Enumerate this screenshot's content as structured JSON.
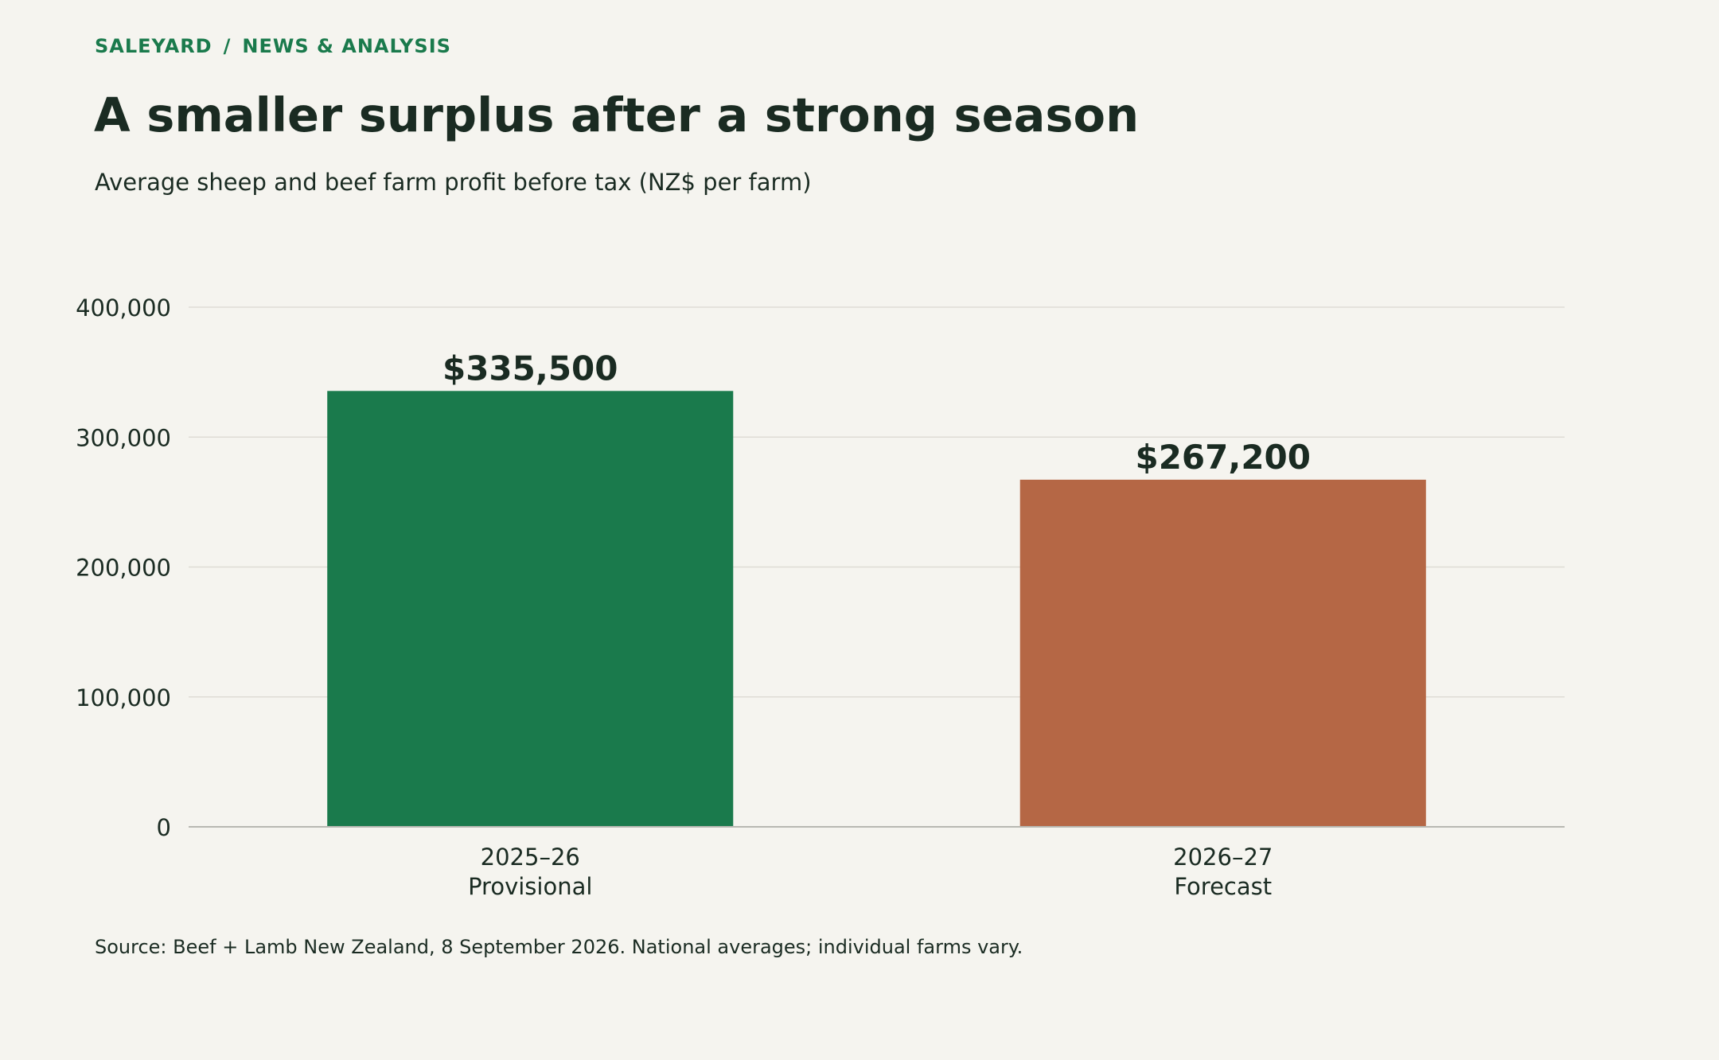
{
  "header": {
    "kicker_section": "SALEYARD",
    "kicker_separator": "/",
    "kicker_category": "NEWS & ANALYSIS",
    "headline": "A smaller surplus after a strong season",
    "subtitle": "Average sheep and beef farm profit before tax (NZ$ per farm)"
  },
  "footer": {
    "source": "Source: Beef + Lamb New Zealand, 8 September 2026. National averages; individual farms vary."
  },
  "chart_data": {
    "type": "bar",
    "title": "A smaller surplus after a strong season",
    "subtitle": "Average sheep and beef farm profit before tax (NZ$ per farm)",
    "xlabel": "",
    "ylabel": "",
    "ylim": [
      0,
      400000
    ],
    "yticks": [
      0,
      100000,
      200000,
      300000,
      400000
    ],
    "ytick_labels": [
      "0",
      "100,000",
      "200,000",
      "300,000",
      "400,000"
    ],
    "grid": true,
    "categories": [
      {
        "label": "2025–26",
        "sublabel": "Provisional"
      },
      {
        "label": "2026–27",
        "sublabel": "Forecast"
      }
    ],
    "values": [
      335500,
      267200
    ],
    "data_labels": [
      "$335,500",
      "$267,200"
    ],
    "colors": [
      "#1a7a4c",
      "#b56745"
    ]
  }
}
